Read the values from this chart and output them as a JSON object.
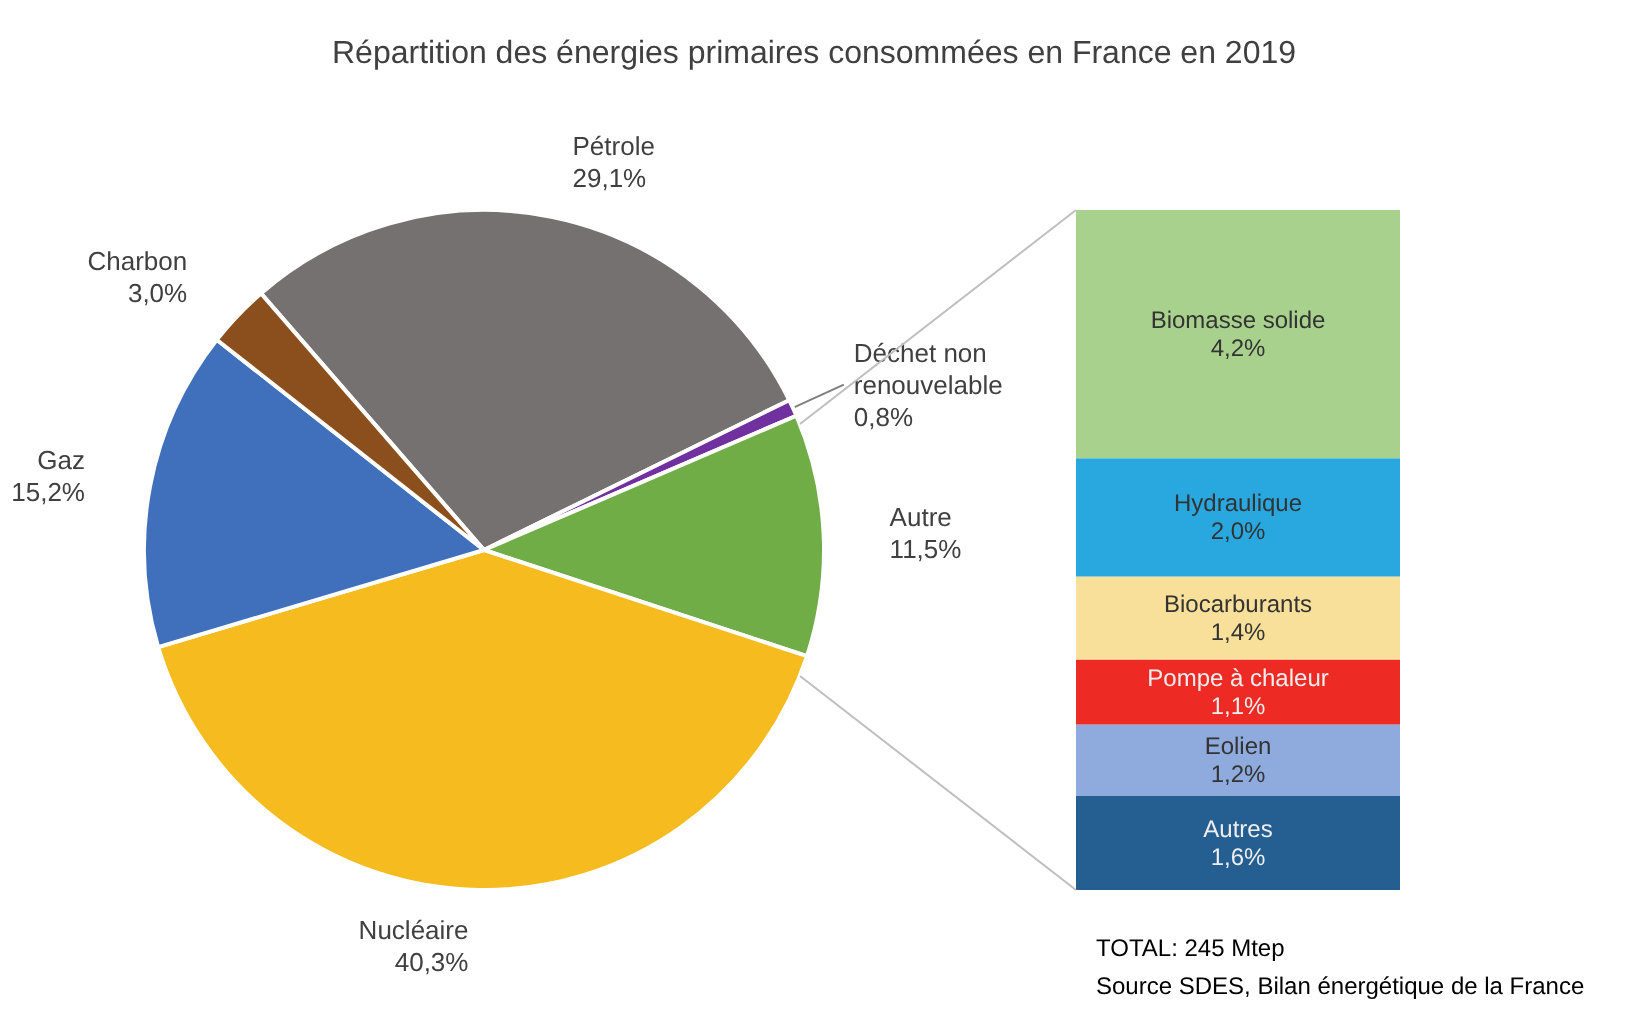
{
  "chart_data": [
    {
      "type": "pie",
      "title": "Répartition des énergies primaires consommées en France en 2019",
      "categories": [
        "Pétrole",
        "Déchet non\nrenouvelable",
        "Autre",
        "Nucléaire",
        "Gaz",
        "Charbon"
      ],
      "values": [
        29.1,
        0.8,
        11.5,
        40.3,
        15.2,
        3.0
      ],
      "value_labels": [
        "29,1%",
        "0,8%",
        "11,5%",
        "40,3%",
        "15,2%",
        "3,0%"
      ],
      "colors": [
        "#767171",
        "#7030a0",
        "#70ad47",
        "#f5bb1f",
        "#4070bb",
        "#8b4f1e"
      ]
    },
    {
      "type": "bar",
      "stacked": true,
      "categories": [
        null
      ],
      "annotations": [
        "TOTAL: 245 Mtep",
        "Source SDES, Bilan énergétique de la France"
      ],
      "series": [
        {
          "name": "Autres",
          "color": "#255e91",
          "values": [
            1.6
          ],
          "value_labels": [
            "1,6%"
          ]
        },
        {
          "name": "Eolien",
          "color": "#8faadc",
          "values": [
            1.2
          ],
          "value_labels": [
            "1,2%"
          ]
        },
        {
          "name": "Pompe à chaleur",
          "color": "#ee2a24",
          "values": [
            1.1
          ],
          "value_labels": [
            "1,1%"
          ]
        },
        {
          "name": "Biocarburants",
          "color": "#f8e09a",
          "values": [
            1.4
          ],
          "value_labels": [
            "1,4%"
          ]
        },
        {
          "name": "Hydraulique",
          "color": "#29a8e0",
          "values": [
            2.0
          ],
          "value_labels": [
            "2,0%"
          ]
        },
        {
          "name": "Biomasse solide",
          "color": "#a9d18e",
          "values": [
            4.2
          ],
          "value_labels": [
            "4,2%"
          ]
        }
      ]
    }
  ]
}
